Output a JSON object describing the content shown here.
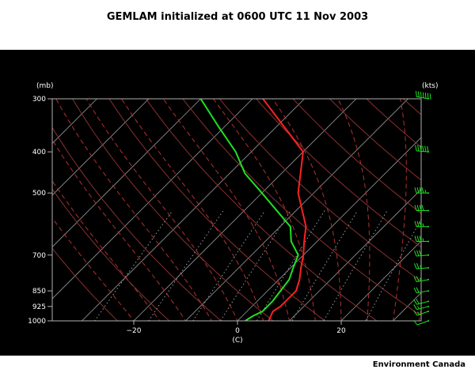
{
  "title": "GEMLAM initialized at 0600 UTC  11 Nov 2003",
  "credit": "Environment Canada",
  "colors": {
    "background": "#000000",
    "frame": "#b0b0b0",
    "isotherm": "#b0b0b0",
    "dry_adiabat": "#8a3030",
    "moist_adiabat": "#b03030",
    "mixing_ratio": "#9a9a9a",
    "temperature": "#ff2020",
    "dewpoint": "#20e020",
    "wind_barb": "#20e020"
  },
  "chart_data": {
    "type": "line",
    "title": "GEMLAM initialized at 0600 UTC  11 Nov 2003",
    "xlabel": "(C)",
    "ylabel": "(mb)",
    "wind_label": "(kts)",
    "x_ticks": [
      -20,
      0,
      20
    ],
    "y_ticks": [
      300,
      400,
      500,
      700,
      850,
      925,
      1000
    ],
    "y_scale": "log",
    "xlim": [
      -40,
      35
    ],
    "ylim": [
      1000,
      300
    ],
    "series": [
      {
        "name": "temperature",
        "pressure": [
          1000,
          950,
          925,
          900,
          850,
          800,
          750,
          700,
          650,
          600,
          500,
          400,
          300
        ],
        "values": [
          6,
          5,
          5.5,
          5.5,
          5.5,
          4,
          2,
          0,
          -2.5,
          -5,
          -13,
          -20,
          -38
        ]
      },
      {
        "name": "dewpoint",
        "pressure": [
          1000,
          975,
          950,
          925,
          900,
          850,
          800,
          750,
          700,
          650,
          600,
          500,
          450,
          400,
          350,
          300
        ],
        "values": [
          1.5,
          2,
          3,
          3,
          3,
          2.5,
          2,
          0.5,
          -1,
          -5,
          -8,
          -20,
          -27,
          -33,
          -41,
          -50
        ]
      }
    ],
    "winds": {
      "pressure": [
        1000,
        950,
        925,
        900,
        850,
        800,
        750,
        700,
        650,
        600,
        550,
        500,
        400,
        300
      ],
      "speed_kts": [
        10,
        15,
        15,
        20,
        20,
        25,
        25,
        30,
        35,
        35,
        40,
        45,
        60,
        70
      ],
      "direction_deg": [
        250,
        250,
        255,
        255,
        260,
        260,
        265,
        265,
        270,
        270,
        270,
        270,
        275,
        280
      ]
    },
    "background_lines": {
      "isotherms_c": [
        -100,
        -90,
        -80,
        -70,
        -60,
        -50,
        -40,
        -30,
        -20,
        -10,
        0,
        10,
        20,
        30
      ],
      "dry_adiabats_k": [
        250,
        260,
        270,
        280,
        290,
        300,
        310,
        320,
        330,
        340,
        350,
        360,
        370,
        380,
        390,
        400,
        410
      ],
      "moist_adiabats_c": [
        -20,
        -15,
        -10,
        -5,
        0,
        5,
        10,
        15,
        20,
        25,
        30,
        35
      ],
      "mixing_ratios_gkg": [
        0.4,
        1,
        2,
        3,
        5,
        8,
        12,
        20
      ]
    }
  }
}
